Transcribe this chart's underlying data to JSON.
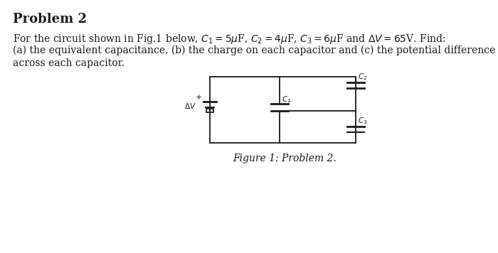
{
  "title": "Problem 2",
  "line1": "For the circuit shown in Fig.1 below, $C_1 = 5\\mu$F, $C_2 = 4\\mu$F, $C_3 = 6\\mu$F and $\\Delta V = 65$V. Find:",
  "line2": "(a) the equivalent capacitance, (b) the charge on each capacitor and (c) the potential difference",
  "line3": "across each capacitor.",
  "caption": "Figure 1: Problem 2.",
  "bg_color": "#ffffff",
  "text_color": "#1a1a1a",
  "circuit_color": "#1a1a1a",
  "title_fontsize": 13,
  "body_fontsize": 10,
  "caption_fontsize": 10,
  "label_fontsize": 7.5
}
